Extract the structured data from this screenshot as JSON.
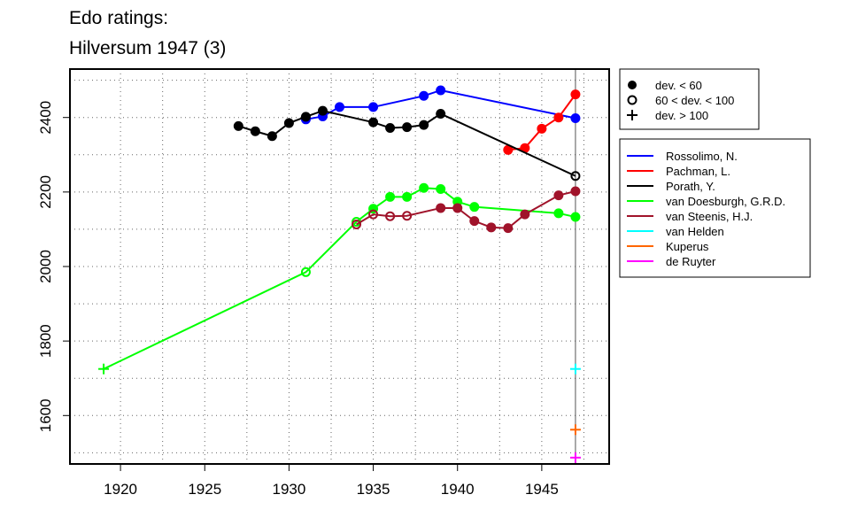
{
  "chart_data": {
    "type": "line",
    "title_line1": "Edo ratings:",
    "title_line2": "Hilversum 1947 (3)",
    "xlabel": "",
    "ylabel": "",
    "xlim": [
      1917,
      1949
    ],
    "ylim": [
      1470,
      2530
    ],
    "x_ticks": [
      1920,
      1925,
      1930,
      1935,
      1940,
      1945
    ],
    "y_ticks": [
      1600,
      1800,
      2000,
      2200,
      2400
    ],
    "grid": "dotted",
    "reference_line_x": 1947,
    "legend_markers": {
      "placement": "right-top",
      "entries": [
        {
          "marker": "filled",
          "label": "dev. < 60"
        },
        {
          "marker": "open",
          "label": "60 < dev. < 100"
        },
        {
          "marker": "plus",
          "label": "dev. > 100"
        }
      ]
    },
    "legend_players": {
      "placement": "right"
    },
    "series": [
      {
        "name": "Rossolimo, N.",
        "color": "#0000ff",
        "points": [
          {
            "x": 1931,
            "y": 2395,
            "m": "filled"
          },
          {
            "x": 1932,
            "y": 2403,
            "m": "filled"
          },
          {
            "x": 1933,
            "y": 2428,
            "m": "filled"
          },
          {
            "x": 1935,
            "y": 2428,
            "m": "filled"
          },
          {
            "x": 1938,
            "y": 2458,
            "m": "filled"
          },
          {
            "x": 1939,
            "y": 2473,
            "m": "filled"
          },
          {
            "x": 1947,
            "y": 2398,
            "m": "filled"
          }
        ]
      },
      {
        "name": "Pachman, L.",
        "color": "#ff0000",
        "points": [
          {
            "x": 1943,
            "y": 2313,
            "m": "filled"
          },
          {
            "x": 1944,
            "y": 2318,
            "m": "filled"
          },
          {
            "x": 1945,
            "y": 2370,
            "m": "filled"
          },
          {
            "x": 1946,
            "y": 2400,
            "m": "filled"
          },
          {
            "x": 1947,
            "y": 2462,
            "m": "filled"
          }
        ]
      },
      {
        "name": "Porath, Y.",
        "color": "#000000",
        "points": [
          {
            "x": 1927,
            "y": 2377,
            "m": "filled"
          },
          {
            "x": 1928,
            "y": 2363,
            "m": "filled"
          },
          {
            "x": 1929,
            "y": 2350,
            "m": "filled"
          },
          {
            "x": 1930,
            "y": 2385,
            "m": "filled"
          },
          {
            "x": 1931,
            "y": 2402,
            "m": "filled"
          },
          {
            "x": 1932,
            "y": 2418,
            "m": "filled"
          },
          {
            "x": 1935,
            "y": 2387,
            "m": "filled"
          },
          {
            "x": 1936,
            "y": 2372,
            "m": "filled"
          },
          {
            "x": 1937,
            "y": 2374,
            "m": "filled"
          },
          {
            "x": 1938,
            "y": 2380,
            "m": "filled"
          },
          {
            "x": 1939,
            "y": 2410,
            "m": "filled"
          },
          {
            "x": 1947,
            "y": 2243,
            "m": "open"
          }
        ]
      },
      {
        "name": "van Doesburgh, G.R.D.",
        "color": "#00ff00",
        "points": [
          {
            "x": 1919,
            "y": 1725,
            "m": "plus"
          },
          {
            "x": 1931,
            "y": 1985,
            "m": "open"
          },
          {
            "x": 1934,
            "y": 2120,
            "m": "open"
          },
          {
            "x": 1935,
            "y": 2155,
            "m": "filled"
          },
          {
            "x": 1936,
            "y": 2187,
            "m": "filled"
          },
          {
            "x": 1937,
            "y": 2187,
            "m": "filled"
          },
          {
            "x": 1938,
            "y": 2211,
            "m": "filled"
          },
          {
            "x": 1939,
            "y": 2208,
            "m": "filled"
          },
          {
            "x": 1940,
            "y": 2174,
            "m": "filled"
          },
          {
            "x": 1941,
            "y": 2160,
            "m": "filled"
          },
          {
            "x": 1946,
            "y": 2143,
            "m": "filled"
          },
          {
            "x": 1947,
            "y": 2133,
            "m": "filled"
          }
        ]
      },
      {
        "name": "van Steenis, H.J.",
        "color": "#a0132a",
        "points": [
          {
            "x": 1934,
            "y": 2113,
            "m": "open"
          },
          {
            "x": 1935,
            "y": 2140,
            "m": "open"
          },
          {
            "x": 1936,
            "y": 2135,
            "m": "open"
          },
          {
            "x": 1937,
            "y": 2136,
            "m": "open"
          },
          {
            "x": 1939,
            "y": 2157,
            "m": "filled"
          },
          {
            "x": 1940,
            "y": 2157,
            "m": "filled"
          },
          {
            "x": 1941,
            "y": 2122,
            "m": "filled"
          },
          {
            "x": 1942,
            "y": 2105,
            "m": "filled"
          },
          {
            "x": 1943,
            "y": 2103,
            "m": "filled"
          },
          {
            "x": 1944,
            "y": 2140,
            "m": "filled"
          },
          {
            "x": 1946,
            "y": 2191,
            "m": "filled"
          },
          {
            "x": 1947,
            "y": 2202,
            "m": "filled"
          }
        ]
      },
      {
        "name": "van Helden",
        "color": "#00ffff",
        "points": [
          {
            "x": 1947,
            "y": 1725,
            "m": "plus"
          }
        ]
      },
      {
        "name": "Kuperus",
        "color": "#ff6600",
        "points": [
          {
            "x": 1947,
            "y": 1562,
            "m": "plus"
          }
        ]
      },
      {
        "name": "de Ruyter",
        "color": "#ff00ff",
        "points": [
          {
            "x": 1947,
            "y": 1487,
            "m": "plus"
          }
        ]
      }
    ]
  }
}
